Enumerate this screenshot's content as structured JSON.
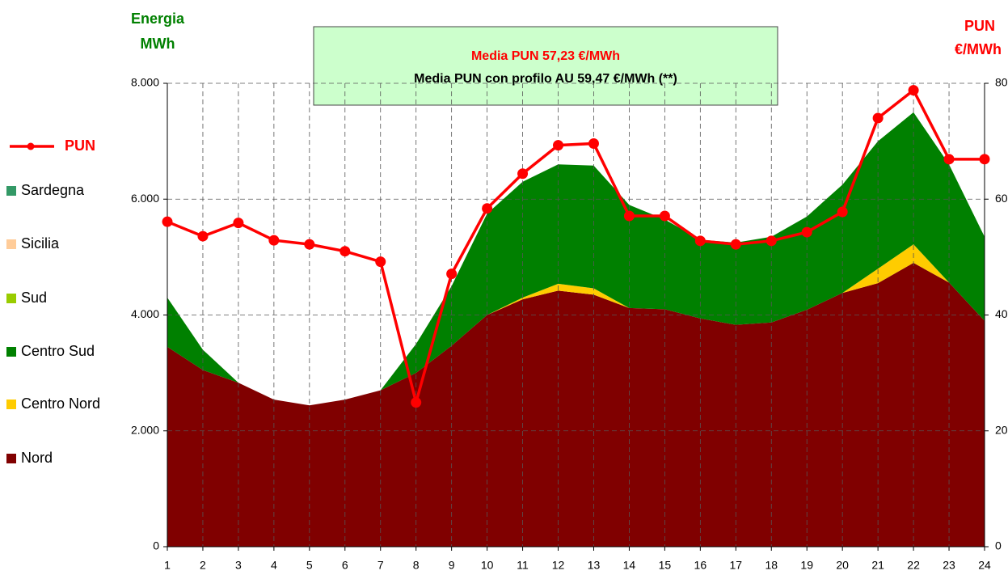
{
  "chart_data": {
    "type": "stacked_area_line",
    "y_label": [
      "Energia",
      "MWh"
    ],
    "y2_label": [
      "PUN",
      "€/MWh"
    ],
    "annotations": [
      "Media PUN 57,23 €/MWh",
      "Media PUN con profilo AU 59,47 €/MWh (**)"
    ],
    "x": [
      1,
      2,
      3,
      4,
      5,
      6,
      7,
      8,
      9,
      10,
      11,
      12,
      13,
      14,
      15,
      16,
      17,
      18,
      19,
      20,
      21,
      22,
      23,
      24
    ],
    "xlim": [
      1,
      24
    ],
    "xticks": [
      1,
      2,
      3,
      4,
      5,
      6,
      7,
      8,
      9,
      10,
      11,
      12,
      13,
      14,
      15,
      16,
      17,
      18,
      19,
      20,
      21,
      22,
      23,
      24
    ],
    "ylim": [
      0,
      8000
    ],
    "yticks": [
      0,
      {
        "value": 2000,
        "label": "2.000"
      },
      {
        "value": 4000,
        "label": "4.000"
      },
      {
        "value": 6000,
        "label": "6.000"
      },
      {
        "value": 8000,
        "label": "8.000"
      }
    ],
    "y2lim": [
      0,
      80
    ],
    "y2ticks": [
      0,
      20,
      40,
      60,
      80
    ],
    "grid": true,
    "legend": "left",
    "series": [
      {
        "name": "PUN",
        "color": "#ff0000",
        "axis": "y2",
        "type": "line",
        "values": [
          56.1,
          53.6,
          55.9,
          52.9,
          52.2,
          51.0,
          49.2,
          24.9,
          47.1,
          58.4,
          64.4,
          69.3,
          69.6,
          57.1,
          57.1,
          52.8,
          52.2,
          52.8,
          54.3,
          57.8,
          74.0,
          78.8,
          66.9,
          66.9
        ]
      },
      {
        "name": "Sardegna",
        "color": "#339966",
        "values": [
          0,
          0,
          0,
          0,
          0,
          0,
          0,
          0,
          0,
          0,
          0,
          0,
          0,
          0,
          0,
          0,
          0,
          0,
          0,
          0,
          0,
          0,
          0,
          0
        ]
      },
      {
        "name": "Sicilia",
        "color": "#ffcc99",
        "values": [
          0,
          0,
          0,
          0,
          0,
          0,
          0,
          0,
          0,
          0,
          0,
          0,
          0,
          0,
          0,
          0,
          0,
          0,
          0,
          0,
          0,
          0,
          0,
          0
        ]
      },
      {
        "name": "Sud",
        "color": "#99cc00",
        "values": [
          0,
          0,
          0,
          0,
          0,
          0,
          0,
          0,
          0,
          0,
          0,
          0,
          0,
          0,
          0,
          0,
          0,
          0,
          0,
          0,
          0,
          0,
          0,
          0
        ]
      },
      {
        "name": "Centro Sud",
        "color": "#008000",
        "values": [
          850,
          350,
          0,
          0,
          0,
          0,
          0,
          500,
          1030,
          1750,
          2000,
          2060,
          2120,
          1780,
          1550,
          1360,
          1420,
          1480,
          1610,
          1870,
          2200,
          2280,
          2040,
          1450
        ]
      },
      {
        "name": "Centro Nord",
        "color": "#ffcc00",
        "values": [
          0,
          0,
          0,
          0,
          0,
          0,
          0,
          0,
          0,
          0,
          30,
          120,
          110,
          0,
          0,
          0,
          0,
          0,
          0,
          0,
          250,
          320,
          0,
          0
        ]
      },
      {
        "name": "Nord",
        "color": "#800000",
        "values": [
          3450,
          3050,
          2830,
          2540,
          2440,
          2540,
          2700,
          3000,
          3470,
          4000,
          4270,
          4420,
          4350,
          4120,
          4100,
          3940,
          3830,
          3870,
          4090,
          4380,
          4550,
          4900,
          4560,
          3900
        ]
      }
    ]
  }
}
